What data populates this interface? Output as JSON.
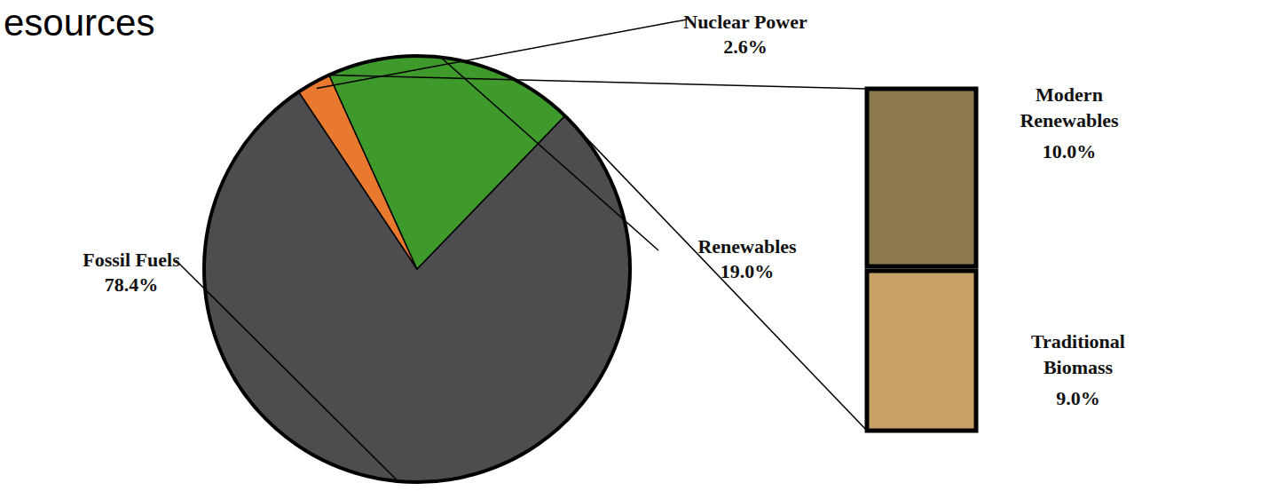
{
  "chart_data": {
    "type": "pie",
    "title": "esources",
    "categories": [
      "Fossil Fuels",
      "Nuclear Power",
      "Renewables"
    ],
    "values": [
      78.4,
      2.6,
      19.0
    ],
    "value_labels": [
      "78.4%",
      "2.6%",
      "19.0%"
    ],
    "colors": [
      "#4d4d4f",
      "#e8792e",
      "#3f9a2c"
    ],
    "data_labels": true,
    "breakdown": {
      "categories": [
        "Modern Renewables",
        "Traditional Biomass"
      ],
      "values": [
        10.0,
        9.0
      ],
      "value_labels": [
        "10.0%",
        "9.0%"
      ],
      "colors": [
        "#8c7a4e",
        "#c9a269"
      ]
    }
  }
}
